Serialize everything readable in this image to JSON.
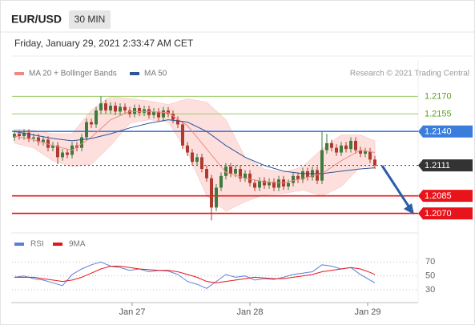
{
  "chart_data": [
    {
      "type": "candlestick",
      "title": "EUR/USD",
      "subtitle": "30 MIN",
      "date": "Friday, January 29, 2021 2:33:47 AM CET",
      "credit": "Research © 2021 Trading Central",
      "up_color": "#3f7a3f",
      "down_color": "#b03a2e",
      "xlim": [
        -0.5,
        84
      ],
      "ylim": [
        1.2054,
        1.2201
      ],
      "open": [
        1.2135,
        1.2138,
        1.2136,
        1.2139,
        1.2134,
        1.2135,
        1.2131,
        1.2133,
        1.2126,
        1.2128,
        1.2118,
        1.2122,
        1.212,
        1.2128,
        1.2126,
        1.2135,
        1.2148,
        1.2146,
        1.2158,
        1.2164,
        1.2158,
        1.2162,
        1.2157,
        1.2161,
        1.2158,
        1.2155,
        1.216,
        1.2156,
        1.2159,
        1.2154,
        1.2157,
        1.2152,
        1.2158,
        1.2155,
        1.215,
        1.2146,
        1.2128,
        1.2122,
        1.2114,
        1.2118,
        1.2108,
        1.21,
        1.2075,
        1.2092,
        1.2102,
        1.211,
        1.2104,
        1.2108,
        1.21,
        1.2104,
        1.2096,
        1.2092,
        1.2098,
        1.2094,
        1.2097,
        1.2092,
        1.2099,
        1.2093,
        1.2096,
        1.2102,
        1.2099,
        1.2106,
        1.2101,
        1.2107,
        1.2098,
        1.2124,
        1.213,
        1.2126,
        1.2122,
        1.2128,
        1.2125,
        1.2132,
        1.2124,
        1.2121,
        1.2123,
        1.2116
      ],
      "high": [
        1.2141,
        1.2141,
        1.2142,
        1.2142,
        1.2138,
        1.2138,
        1.2136,
        1.2136,
        1.2131,
        1.2131,
        1.2125,
        1.2125,
        1.2131,
        1.2131,
        1.2138,
        1.2151,
        1.2151,
        1.2161,
        1.217,
        1.2167,
        1.2165,
        1.2165,
        1.2164,
        1.2164,
        1.2161,
        1.2163,
        1.2163,
        1.2162,
        1.2162,
        1.216,
        1.216,
        1.2161,
        1.2161,
        1.2158,
        1.2153,
        1.2149,
        1.2131,
        1.2125,
        1.2121,
        1.2121,
        1.2111,
        1.2103,
        1.2095,
        1.2105,
        1.2113,
        1.2113,
        1.2111,
        1.2111,
        1.2107,
        1.2107,
        1.2099,
        1.2101,
        1.2101,
        1.21,
        1.21,
        1.2102,
        1.2102,
        1.2099,
        1.2105,
        1.2105,
        1.2109,
        1.2109,
        1.211,
        1.211,
        1.214,
        1.2138,
        1.2133,
        1.2129,
        1.2131,
        1.2131,
        1.2135,
        1.2135,
        1.2127,
        1.2126,
        1.2126,
        1.2119
      ],
      "low": [
        1.2132,
        1.2133,
        1.2133,
        1.2131,
        1.2131,
        1.2128,
        1.2128,
        1.2123,
        1.2123,
        1.2112,
        1.2115,
        1.2117,
        1.2117,
        1.2123,
        1.2123,
        1.2132,
        1.2143,
        1.2143,
        1.2155,
        1.2155,
        1.2155,
        1.2154,
        1.2154,
        1.2155,
        1.2152,
        1.2152,
        1.2153,
        1.2153,
        1.2151,
        1.2151,
        1.2149,
        1.2149,
        1.2152,
        1.2147,
        1.2143,
        1.2125,
        1.2119,
        1.2111,
        1.2111,
        1.2105,
        1.2097,
        1.2064,
        1.2072,
        1.2089,
        1.2099,
        1.2101,
        1.2101,
        1.2097,
        1.2097,
        1.2093,
        1.2089,
        1.2089,
        1.2091,
        1.2091,
        1.2089,
        1.2089,
        1.209,
        1.209,
        1.2093,
        1.2096,
        1.2096,
        1.2098,
        1.2098,
        1.2095,
        1.2095,
        1.2121,
        1.2123,
        1.2119,
        1.2119,
        1.2122,
        1.2122,
        1.2121,
        1.2118,
        1.2118,
        1.2113,
        1.2108
      ],
      "close": [
        1.2138,
        1.2136,
        1.2139,
        1.2134,
        1.2135,
        1.2131,
        1.2133,
        1.2126,
        1.2128,
        1.2118,
        1.2122,
        1.212,
        1.2128,
        1.2126,
        1.2135,
        1.2148,
        1.2146,
        1.2158,
        1.2164,
        1.2158,
        1.2162,
        1.2157,
        1.2161,
        1.2158,
        1.2155,
        1.216,
        1.2156,
        1.2159,
        1.2154,
        1.2157,
        1.2152,
        1.2158,
        1.2155,
        1.215,
        1.2146,
        1.2128,
        1.2122,
        1.2114,
        1.2118,
        1.2108,
        1.21,
        1.2075,
        1.2092,
        1.2102,
        1.211,
        1.2104,
        1.2108,
        1.21,
        1.2104,
        1.2096,
        1.2092,
        1.2098,
        1.2094,
        1.2097,
        1.2092,
        1.2099,
        1.2093,
        1.2096,
        1.2102,
        1.2099,
        1.2106,
        1.2101,
        1.2107,
        1.2098,
        1.2124,
        1.213,
        1.2126,
        1.2122,
        1.2128,
        1.2125,
        1.2132,
        1.2124,
        1.2121,
        1.2123,
        1.2116,
        1.2111
      ],
      "series": [
        {
          "name": "MA 20 + Bollinger Bands",
          "color": "#f08a80",
          "band_color": "#fde0de",
          "x": [
            0,
            4,
            8,
            12,
            16,
            20,
            24,
            28,
            32,
            36,
            40,
            44,
            48,
            52,
            56,
            60,
            64,
            68,
            72,
            75
          ],
          "values": [
            1.2136,
            1.2133,
            1.2128,
            1.2124,
            1.2135,
            1.215,
            1.2157,
            1.2157,
            1.2156,
            1.2145,
            1.2125,
            1.2105,
            1.21,
            1.2097,
            1.2096,
            1.21,
            1.2104,
            1.2115,
            1.2124,
            1.2122
          ],
          "upper": [
            1.2142,
            1.2141,
            1.2138,
            1.2138,
            1.2158,
            1.217,
            1.2168,
            1.2166,
            1.2163,
            1.2168,
            1.2165,
            1.215,
            1.2118,
            1.2108,
            1.2105,
            1.211,
            1.2125,
            1.2137,
            1.2137,
            1.2132
          ],
          "lower": [
            1.213,
            1.2126,
            1.2115,
            1.211,
            1.2112,
            1.2128,
            1.2147,
            1.215,
            1.2148,
            1.2122,
            1.2085,
            1.2072,
            1.208,
            1.2086,
            1.2087,
            1.209,
            1.2085,
            1.2093,
            1.211,
            1.211
          ]
        },
        {
          "name": "MA 50",
          "color": "#2f5597",
          "x": [
            0,
            4,
            8,
            12,
            16,
            20,
            24,
            28,
            32,
            36,
            40,
            44,
            48,
            52,
            56,
            60,
            64,
            68,
            72,
            75
          ],
          "values": [
            1.214,
            1.2137,
            1.2134,
            1.2132,
            1.2134,
            1.2138,
            1.2143,
            1.2147,
            1.215,
            1.2148,
            1.214,
            1.2128,
            1.2118,
            1.2111,
            1.2106,
            1.2104,
            1.2104,
            1.2106,
            1.2108,
            1.2109
          ]
        }
      ],
      "levels": [
        {
          "value": 1.217,
          "label": "1.2170",
          "color": "#9ccc65",
          "text_color": "#5a9e1e",
          "tag": false,
          "dash": false
        },
        {
          "value": 1.2155,
          "label": "1.2155",
          "color": "#9ccc65",
          "text_color": "#5a9e1e",
          "tag": false,
          "dash": false
        },
        {
          "value": 1.214,
          "label": "1.2140",
          "color": "#3b7ddd",
          "text_color": "#ffffff",
          "tag": true,
          "dash": false
        },
        {
          "value": 1.2111,
          "label": "1.2111",
          "color": "#333333",
          "text_color": "#ffffff",
          "tag": true,
          "dash": true
        },
        {
          "value": 1.2085,
          "label": "1.2085",
          "color": "#e8141b",
          "text_color": "#ffffff",
          "tag": true,
          "dash": false
        },
        {
          "value": 1.207,
          "label": "1.2070",
          "color": "#e8141b",
          "text_color": "#ffffff",
          "tag": true,
          "dash": false
        }
      ]
    },
    {
      "type": "line",
      "xlim": [
        -0.5,
        84
      ],
      "ylim": [
        15,
        90
      ],
      "yticks": [
        30,
        50,
        70
      ],
      "grid": true,
      "xticks": [
        {
          "value": 24.5,
          "label": "Jan 27"
        },
        {
          "value": 49,
          "label": "Jan 28"
        },
        {
          "value": 73.5,
          "label": "Jan 29"
        }
      ],
      "series": [
        {
          "name": "RSI",
          "color": "#5b7fd6",
          "x": [
            0,
            2,
            4,
            6,
            8,
            10,
            12,
            14,
            16,
            18,
            20,
            22,
            24,
            26,
            28,
            30,
            32,
            34,
            36,
            38,
            40,
            42,
            44,
            46,
            48,
            50,
            52,
            54,
            56,
            58,
            60,
            62,
            64,
            66,
            68,
            70,
            72,
            74,
            75
          ],
          "values": [
            48,
            50,
            46,
            44,
            40,
            36,
            52,
            60,
            66,
            70,
            64,
            62,
            58,
            60,
            56,
            58,
            57,
            52,
            42,
            38,
            32,
            42,
            52,
            48,
            50,
            44,
            46,
            45,
            48,
            52,
            54,
            56,
            66,
            64,
            60,
            62,
            52,
            44,
            40
          ]
        },
        {
          "name": "9MA",
          "color": "#e8141b",
          "x": [
            0,
            2,
            4,
            6,
            8,
            10,
            12,
            14,
            16,
            18,
            20,
            22,
            24,
            26,
            28,
            30,
            32,
            34,
            36,
            38,
            40,
            42,
            44,
            46,
            48,
            50,
            52,
            54,
            56,
            58,
            60,
            62,
            64,
            66,
            68,
            70,
            72,
            74,
            75
          ],
          "values": [
            48,
            48,
            48,
            46,
            44,
            42,
            44,
            48,
            54,
            60,
            64,
            64,
            62,
            60,
            59,
            58,
            58,
            56,
            52,
            48,
            42,
            40,
            42,
            44,
            46,
            48,
            47,
            46,
            46,
            48,
            50,
            52,
            56,
            58,
            60,
            62,
            60,
            55,
            52
          ]
        }
      ]
    }
  ]
}
